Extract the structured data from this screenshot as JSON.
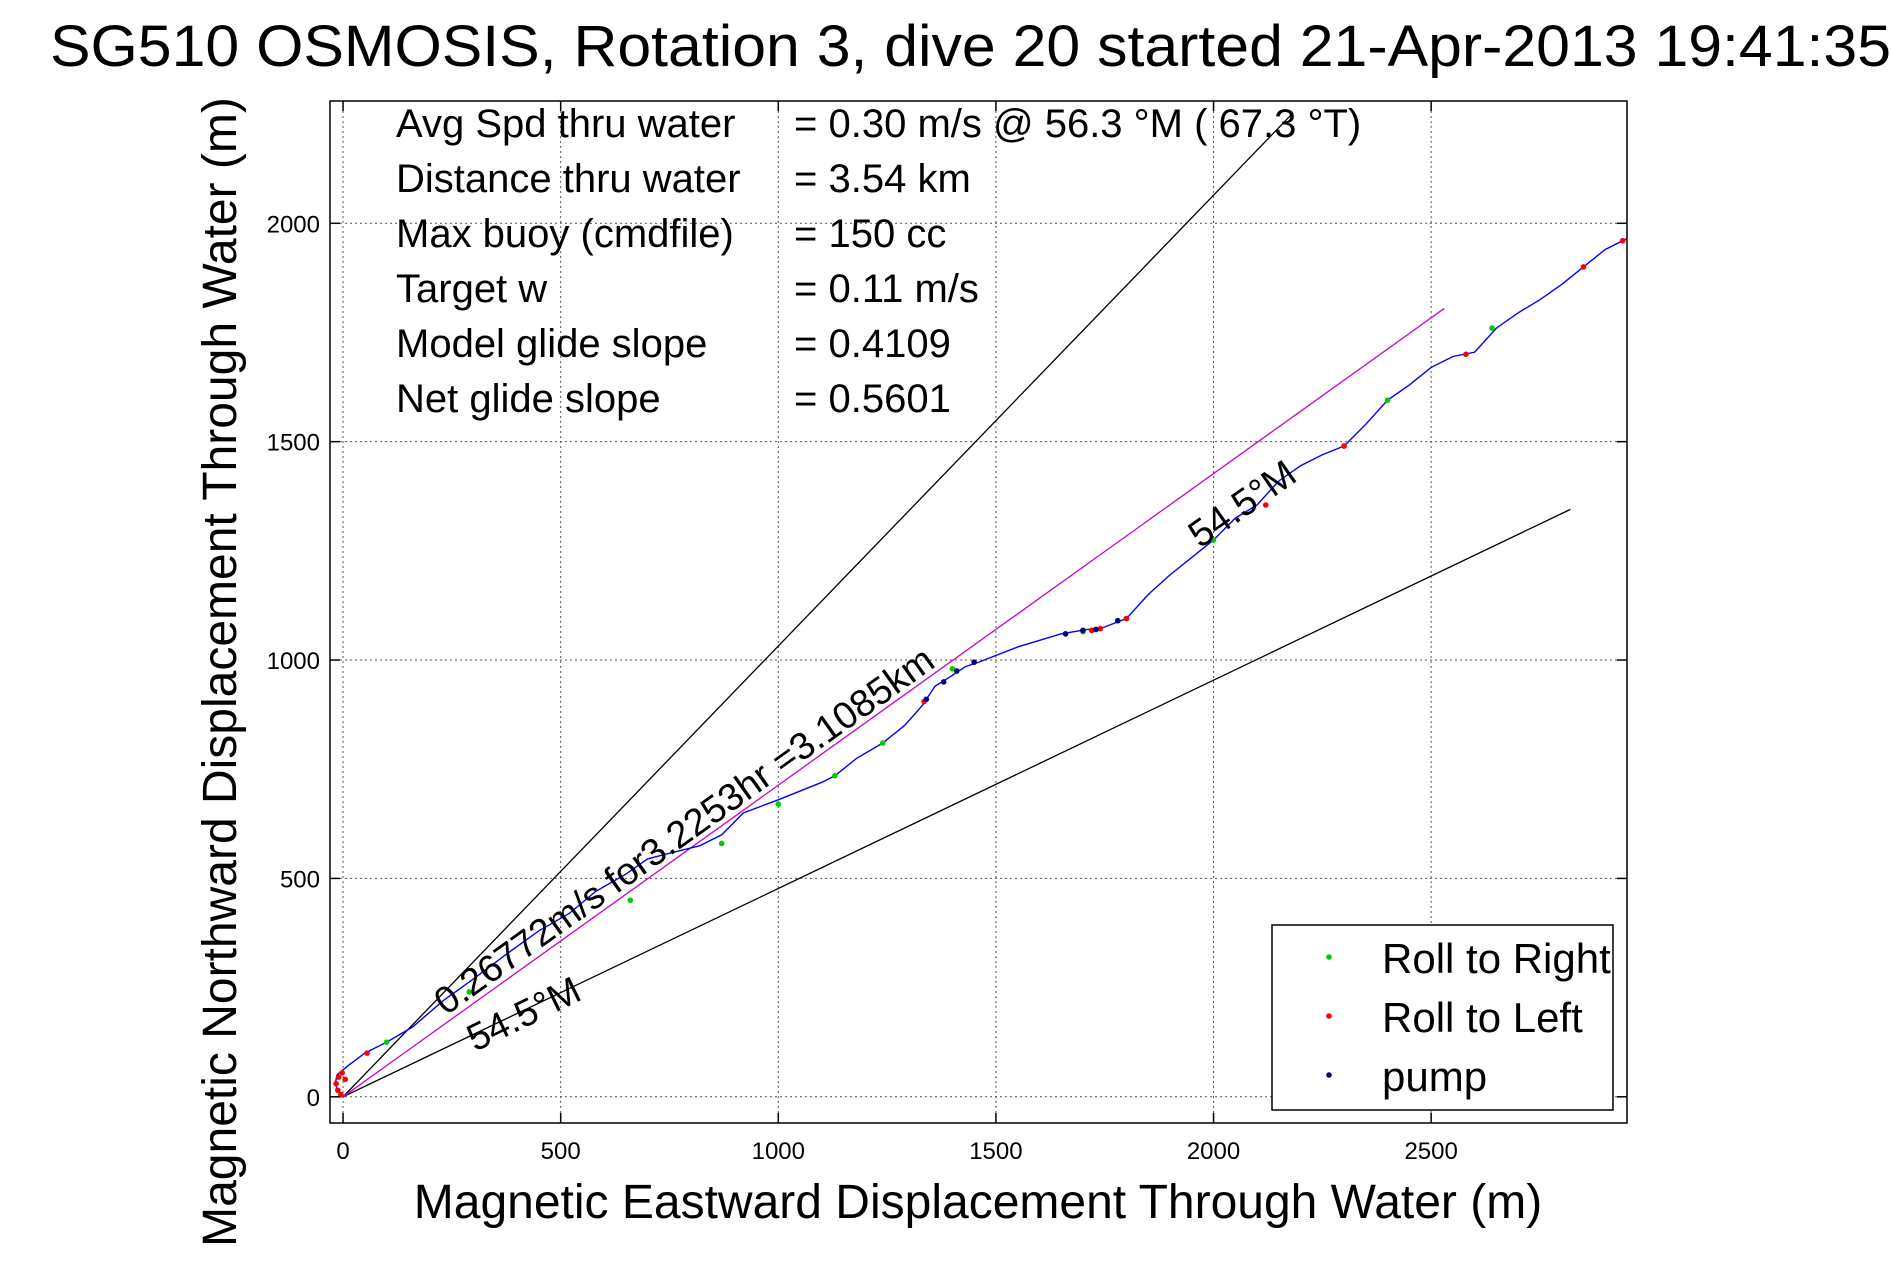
{
  "chart_data": {
    "type": "line",
    "title": "SG510 OSMOSIS, Rotation 3, dive 20 started 21-Apr-2013 19:41:35",
    "xlabel": "Magnetic Eastward Displacement Through Water (m)",
    "ylabel": "Magnetic Northward Displacement Through Water (m)",
    "xlim": [
      -30,
      2950
    ],
    "ylim": [
      -60,
      2280
    ],
    "xticks": [
      0,
      500,
      1000,
      1500,
      2000,
      2500
    ],
    "yticks": [
      0,
      500,
      1000,
      1500,
      2000
    ],
    "grid": true,
    "legend_position": "bottom-right",
    "info_rows": [
      {
        "label": "Avg Spd thru water",
        "value": "=  0.30 m/s @  56.3 °M ( 67.3 °T)"
      },
      {
        "label": "Distance thru water",
        "value": "=  3.54 km"
      },
      {
        "label": "Max buoy (cmdfile)",
        "value": "= 150 cc"
      },
      {
        "label": "Target w",
        "value": "= 0.11 m/s"
      },
      {
        "label": "Model glide slope",
        "value": "= 0.4109"
      },
      {
        "label": "Net glide slope",
        "value": "= 0.5601"
      }
    ],
    "annotations": {
      "net_line": "0.26772m/s for3.2253hr =3.1085km",
      "heading_low": "54.5°M",
      "heading_high": "54.5°M"
    },
    "guide_lines": [
      {
        "name": "upper-bound",
        "color": "#000000",
        "x": [
          0,
          2180
        ],
        "y": [
          0,
          2250
        ]
      },
      {
        "name": "lower-bound",
        "color": "#000000",
        "x": [
          0,
          2820
        ],
        "y": [
          0,
          1345
        ]
      },
      {
        "name": "net-heading",
        "color": "#cc00cc",
        "x": [
          0,
          2530
        ],
        "y": [
          0,
          1805
        ]
      }
    ],
    "series": [
      {
        "role": "track",
        "color": "#0000ff",
        "x": [
          0,
          -10,
          -18,
          -14,
          10,
          50,
          100,
          160,
          230,
          300,
          380,
          450,
          520,
          580,
          650,
          700,
          760,
          820,
          870,
          920,
          960,
          1000,
          1050,
          1100,
          1130,
          1180,
          1240,
          1290,
          1330,
          1360,
          1400,
          1430,
          1460,
          1550,
          1650,
          1710,
          1740,
          1800,
          1850,
          1900,
          1950,
          2000,
          2050,
          2100,
          2150,
          2200,
          2250,
          2300,
          2350,
          2400,
          2450,
          2500,
          2550,
          2600,
          2650,
          2700,
          2750,
          2800,
          2850,
          2900,
          2950
        ],
        "y": [
          0,
          10,
          30,
          50,
          70,
          100,
          125,
          160,
          220,
          270,
          330,
          380,
          420,
          470,
          510,
          545,
          560,
          575,
          600,
          650,
          665,
          680,
          700,
          720,
          735,
          775,
          810,
          850,
          895,
          940,
          965,
          985,
          995,
          1030,
          1060,
          1070,
          1072,
          1095,
          1150,
          1195,
          1235,
          1275,
          1325,
          1355,
          1410,
          1445,
          1470,
          1490,
          1540,
          1595,
          1630,
          1670,
          1695,
          1705,
          1760,
          1795,
          1825,
          1860,
          1900,
          1940,
          1965
        ]
      },
      {
        "name": "Roll to Right",
        "color": "#00cc00",
        "x": [
          100,
          290,
          660,
          870,
          1000,
          1130,
          1240,
          1400,
          1700,
          1800,
          2000,
          2300,
          2400,
          2640
        ],
        "y": [
          125,
          240,
          450,
          580,
          670,
          735,
          810,
          980,
          1065,
          1095,
          1275,
          1490,
          1595,
          1760
        ]
      },
      {
        "name": "Roll to Left",
        "color": "#ff0000",
        "x": [
          -5,
          -12,
          -16,
          -10,
          -2,
          5,
          55,
          1335,
          1720,
          1740,
          1800,
          2120,
          2300,
          2580,
          2850,
          2940
        ],
        "y": [
          5,
          15,
          30,
          45,
          55,
          40,
          100,
          905,
          1068,
          1072,
          1095,
          1355,
          1490,
          1700,
          1900,
          1960
        ]
      },
      {
        "name": "pump",
        "color": "#000080",
        "x": [
          1340,
          1380,
          1410,
          1450,
          1660,
          1700,
          1730,
          1780
        ],
        "y": [
          910,
          950,
          975,
          995,
          1060,
          1068,
          1070,
          1090
        ]
      }
    ]
  }
}
